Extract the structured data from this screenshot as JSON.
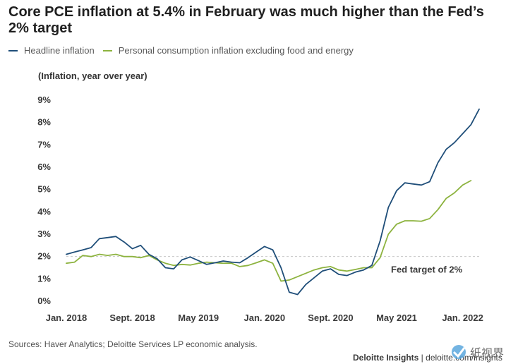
{
  "title": "Core PCE inflation at 5.4% in February was much higher than the Fed’s 2% target",
  "chart_data": {
    "type": "line",
    "title": "Core PCE inflation at 5.4% in February was much higher than the Fed’s 2% target",
    "ylabel": "(Inflation, year over year)",
    "xlabel": "",
    "ylim": [
      0,
      9
    ],
    "yticks": [
      "0%",
      "1%",
      "2%",
      "3%",
      "4%",
      "5%",
      "6%",
      "7%",
      "8%",
      "9%"
    ],
    "x_tick_labels": [
      "Jan. 2018",
      "Sept. 2018",
      "May 2019",
      "Jan. 2020",
      "Sept. 2020",
      "May 2021",
      "Jan. 2022"
    ],
    "x_tick_month_index": [
      0,
      8,
      16,
      24,
      32,
      40,
      48
    ],
    "grid": false,
    "legend_position": "top-left",
    "reference_line": {
      "value": 2,
      "label": "Fed target of 2%",
      "color": "#c8c8c8"
    },
    "series": [
      {
        "name": "Headline inflation",
        "color": "#1f4e79",
        "values": [
          2.1,
          2.2,
          2.3,
          2.4,
          2.8,
          2.85,
          2.9,
          2.65,
          2.35,
          2.5,
          2.1,
          1.9,
          1.5,
          1.45,
          1.85,
          1.98,
          1.82,
          1.65,
          1.72,
          1.8,
          1.75,
          1.72,
          1.95,
          2.2,
          2.45,
          2.3,
          1.5,
          0.4,
          0.3,
          0.75,
          1.05,
          1.35,
          1.45,
          1.2,
          1.15,
          1.3,
          1.4,
          1.6,
          2.7,
          4.2,
          4.95,
          5.3,
          5.25,
          5.2,
          5.35,
          6.2,
          6.8,
          7.1,
          7.5,
          7.9,
          8.6
        ]
      },
      {
        "name": "Personal consumption inflation excluding food and energy",
        "color": "#8db33f",
        "values": [
          1.7,
          1.75,
          2.05,
          2.0,
          2.1,
          2.05,
          2.1,
          2.0,
          2.0,
          1.95,
          2.05,
          1.85,
          1.7,
          1.6,
          1.65,
          1.62,
          1.7,
          1.75,
          1.72,
          1.7,
          1.7,
          1.55,
          1.6,
          1.72,
          1.85,
          1.7,
          0.9,
          0.95,
          1.1,
          1.25,
          1.4,
          1.5,
          1.55,
          1.4,
          1.35,
          1.42,
          1.5,
          1.5,
          1.95,
          3.0,
          3.45,
          3.6,
          3.6,
          3.58,
          3.7,
          4.1,
          4.6,
          4.85,
          5.2,
          5.4
        ]
      }
    ]
  },
  "legend": {
    "headline_label": "Headline inflation",
    "core_label": "Personal consumption inflation excluding food and energy"
  },
  "source": "Sources: Haver Analytics; Deloitte Services LP economic analysis.",
  "credit": {
    "brand": "Deloitte Insights",
    "separator": " | ",
    "url": "deloitte.com/insights"
  },
  "watermark_text": "纸视界"
}
